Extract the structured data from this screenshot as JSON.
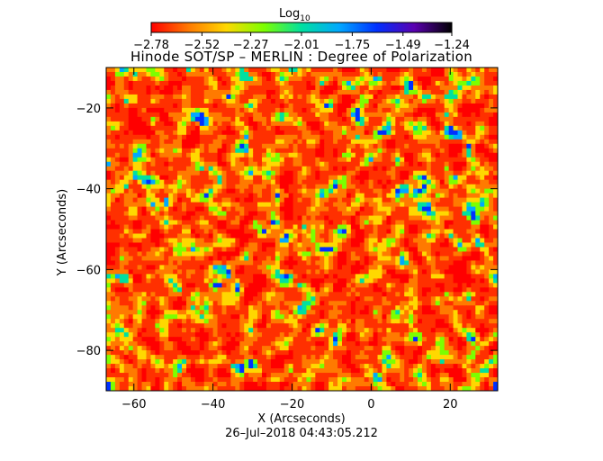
{
  "chart_data": {
    "type": "heatmap",
    "title": "Hinode SOT/SP – MERLIN : Degree of Polarization",
    "xlabel": "X (Arcseconds)",
    "ylabel": "Y (Arcseconds)",
    "date_label": "26–Jul–2018 04:43:05.212",
    "xlim": [
      -67,
      32
    ],
    "ylim": [
      -90,
      -10
    ],
    "x_ticks": [
      -60,
      -40,
      -20,
      0,
      20
    ],
    "x_tick_labels": [
      "−60",
      "−40",
      "−20",
      "0",
      "20"
    ],
    "y_ticks": [
      -20,
      -40,
      -60,
      -80
    ],
    "y_tick_labels": [
      "−20",
      "−40",
      "−60",
      "−80"
    ],
    "colorbar": {
      "title_main": "Log",
      "title_sub": "10",
      "min": -2.78,
      "max": -1.24,
      "tick_values": [
        -2.78,
        -2.52,
        -2.27,
        -2.01,
        -1.75,
        -1.49,
        -1.24
      ],
      "tick_labels": [
        "−2.78",
        "−2.52",
        "−2.27",
        "−2.01",
        "−1.75",
        "−1.49",
        "−1.24"
      ],
      "colors": [
        "#ff0000",
        "#ff7a00",
        "#ffd800",
        "#7cff00",
        "#00e0a0",
        "#00a8ff",
        "#0030ff",
        "#5a00b0",
        "#000000"
      ]
    }
  }
}
